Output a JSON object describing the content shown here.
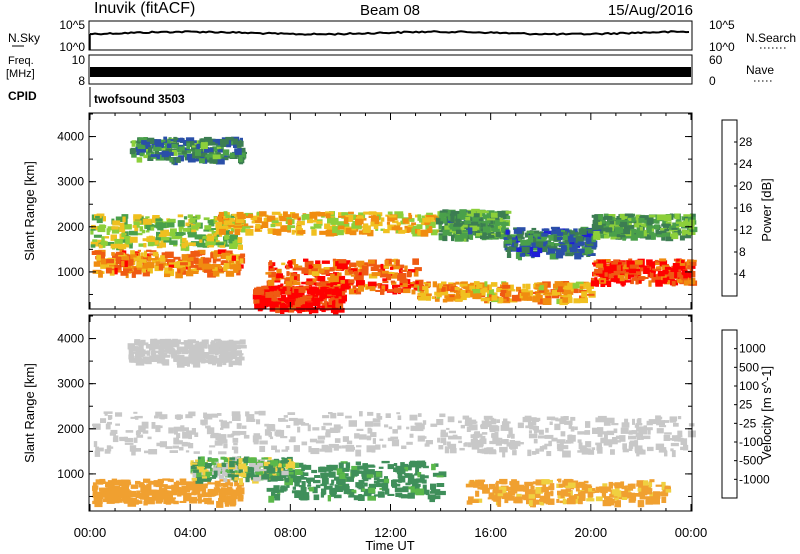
{
  "header": {
    "station": "Inuvik (fitACF)",
    "beam": "Beam 08",
    "date": "15/Aug/2016"
  },
  "top_panels": {
    "nsky_label": "N.Sky",
    "nsky_ticks": [
      "10^5",
      "10^0"
    ],
    "nsearch_label": "N.Search",
    "freq_label": "Freq.",
    "freq_unit": "[MHz]",
    "freq_ticks": [
      "10",
      "8"
    ],
    "nave_label": "Nave",
    "nave_ticks": [
      "60",
      "0"
    ],
    "cpid_label": "CPID",
    "cpid_value": "twofsound 3503"
  },
  "colors": {
    "power_scale": [
      "#1f1fd6",
      "#2a4fa8",
      "#3c7d52",
      "#4aa04a",
      "#8ccf3a",
      "#f0c020",
      "#f08c10",
      "#ef5a12",
      "#ff0000"
    ],
    "velocity_scale": [
      "#1f3ea8",
      "#2f6fb0",
      "#3f8f5a",
      "#5ab84a",
      "#c8c8c8",
      "#f0d040",
      "#f0a030",
      "#ef6a10",
      "#ff0000"
    ]
  },
  "chart_data": [
    {
      "type": "heatmap",
      "name": "power",
      "ylabel": "Slant Range [km]",
      "xlabel": "",
      "ylim": [
        200,
        4500
      ],
      "yticks": [
        "1000",
        "2000",
        "3000",
        "4000"
      ],
      "colorbar_label": "Power [dB]",
      "colorbar_ticks": [
        "4",
        "8",
        "12",
        "16",
        "20",
        "24",
        "28"
      ],
      "colorbar_range": [
        0,
        32
      ],
      "echo_bands": [
        {
          "t0": 0,
          "t1": 6,
          "r0": 1600,
          "r1": 2300,
          "level": 16
        },
        {
          "t0": 5,
          "t1": 13.8,
          "r0": 1900,
          "r1": 2350,
          "level": 20
        },
        {
          "t0": 13.8,
          "t1": 16.5,
          "r0": 1800,
          "r1": 2400,
          "level": 12
        },
        {
          "t0": 16.5,
          "t1": 20,
          "r0": 1400,
          "r1": 2000,
          "level": 8
        },
        {
          "t0": 20,
          "t1": 24,
          "r0": 1800,
          "r1": 2300,
          "level": 12
        },
        {
          "t0": 0,
          "t1": 6,
          "r0": 1000,
          "r1": 1500,
          "level": 24
        },
        {
          "t0": 7,
          "t1": 13,
          "r0": 600,
          "r1": 1300,
          "level": 26
        },
        {
          "t0": 6.5,
          "t1": 10,
          "r0": 200,
          "r1": 700,
          "level": 30
        },
        {
          "t0": 13,
          "t1": 20,
          "r0": 400,
          "r1": 800,
          "level": 22
        },
        {
          "t0": 20,
          "t1": 24,
          "r0": 800,
          "r1": 1300,
          "level": 28
        },
        {
          "t0": 1.5,
          "t1": 6,
          "r0": 3500,
          "r1": 4000,
          "level": 10
        }
      ]
    },
    {
      "type": "heatmap",
      "name": "velocity",
      "ylabel": "Slant Range [km]",
      "xlabel": "Time UT",
      "ylim": [
        200,
        4500
      ],
      "yticks": [
        "1000",
        "2000",
        "3000",
        "4000"
      ],
      "xticks": [
        "00:00",
        "04:00",
        "08:00",
        "12:00",
        "16:00",
        "20:00",
        "00:00"
      ],
      "xlim": [
        0,
        24
      ],
      "colorbar_label": "Velocity [m s^-1]",
      "colorbar_ticks": [
        "1000",
        "500",
        "100",
        "25",
        "-25",
        "-100",
        "-500",
        "-1000"
      ],
      "echo_bands": [
        {
          "t0": 0,
          "t1": 14,
          "r0": 1500,
          "r1": 2400,
          "level": 0
        },
        {
          "t0": 14,
          "t1": 24,
          "r0": 1500,
          "r1": 2300,
          "level": 0
        },
        {
          "t0": 7,
          "t1": 14,
          "r0": 500,
          "r1": 1300,
          "level": 200
        },
        {
          "t0": 0,
          "t1": 6,
          "r0": 400,
          "r1": 900,
          "level": -300
        },
        {
          "t0": 15,
          "t1": 23,
          "r0": 400,
          "r1": 900,
          "level": -200
        },
        {
          "t0": 4,
          "t1": 8,
          "r0": 900,
          "r1": 1400,
          "level": 50
        },
        {
          "t0": 1.5,
          "t1": 6,
          "r0": 3500,
          "r1": 4000,
          "level": 0
        }
      ]
    }
  ]
}
